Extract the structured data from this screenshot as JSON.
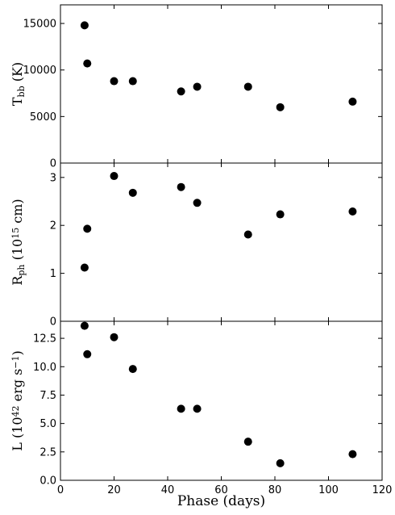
{
  "chart_data": {
    "type": "scatter",
    "xlabel": "Phase (days)",
    "xlim": [
      0,
      120
    ],
    "xticks": [
      0,
      20,
      40,
      60,
      80,
      100,
      120
    ],
    "panels": [
      {
        "ylabel_main": "T",
        "ylabel_sub": "bb",
        "ylabel_rest": " (K)",
        "ylim": [
          0,
          17000
        ],
        "yticks": [
          0,
          5000,
          10000,
          15000
        ],
        "ytick_labels": [
          "0",
          "5000",
          "10000",
          "15000"
        ],
        "series": [
          {
            "x": [
              9,
              10,
              20,
              27,
              45,
              51,
              70,
              82,
              109
            ],
            "y": [
              14800,
              10700,
              8800,
              8800,
              7700,
              8200,
              8200,
              6000,
              6600
            ]
          }
        ]
      },
      {
        "ylabel_main": "R",
        "ylabel_sub": "ph",
        "ylabel_rest": " (10",
        "ylabel_sup": "15",
        "ylabel_end": " cm)",
        "ylim": [
          0,
          3.3
        ],
        "yticks": [
          0,
          1,
          2,
          3
        ],
        "ytick_labels": [
          "0",
          "1",
          "2",
          "3"
        ],
        "series": [
          {
            "x": [
              9,
              10,
              20,
              27,
              45,
              51,
              70,
              82,
              109
            ],
            "y": [
              1.12,
              1.93,
              3.03,
              2.68,
              2.8,
              2.47,
              1.81,
              2.23,
              2.29
            ]
          }
        ]
      },
      {
        "ylabel_main": "L (10",
        "ylabel_sup": "42",
        "ylabel_rest": " erg s",
        "ylabel_sup2": "−1",
        "ylabel_end": ")",
        "ylim": [
          0,
          14
        ],
        "yticks": [
          0,
          2.5,
          5,
          7.5,
          10,
          12.5
        ],
        "ytick_labels": [
          "0.0",
          "2.5",
          "5.0",
          "7.5",
          "10.0",
          "12.5"
        ],
        "series": [
          {
            "x": [
              9,
              10,
              20,
              27,
              45,
              51,
              70,
              82,
              109
            ],
            "y": [
              13.6,
              11.1,
              12.6,
              9.8,
              6.3,
              6.3,
              3.4,
              1.5,
              2.3
            ]
          }
        ]
      }
    ]
  }
}
